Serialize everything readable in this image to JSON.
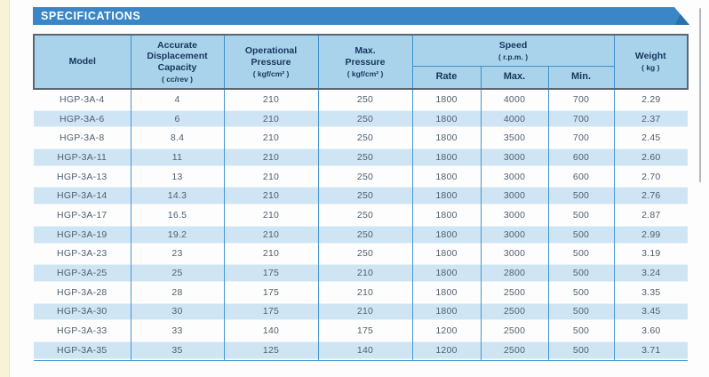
{
  "banner": {
    "title": "SPECIFICATIONS"
  },
  "table": {
    "headers": {
      "model": "Model",
      "capacity": "Accurate\nDisplacement\nCapacity",
      "capacity_unit": "( cc/rev )",
      "op_pressure": "Operational\nPressure",
      "op_pressure_unit": "( kgf/cm² )",
      "max_pressure": "Max.\nPressure",
      "max_pressure_unit": "( kgf/cm² )",
      "speed": "Speed",
      "speed_unit": "( r.p.m. )",
      "rate": "Rate",
      "max": "Max.",
      "min": "Min.",
      "weight": "Weight",
      "weight_unit": "( kg )"
    },
    "rows": [
      [
        "HGP-3A-4",
        "4",
        "210",
        "250",
        "1800",
        "4000",
        "700",
        "2.29"
      ],
      [
        "HGP-3A-6",
        "6",
        "210",
        "250",
        "1800",
        "4000",
        "700",
        "2.37"
      ],
      [
        "HGP-3A-8",
        "8.4",
        "210",
        "250",
        "1800",
        "3500",
        "700",
        "2.45"
      ],
      [
        "HGP-3A-11",
        "11",
        "210",
        "250",
        "1800",
        "3000",
        "600",
        "2.60"
      ],
      [
        "HGP-3A-13",
        "13",
        "210",
        "250",
        "1800",
        "3000",
        "600",
        "2.70"
      ],
      [
        "HGP-3A-14",
        "14.3",
        "210",
        "250",
        "1800",
        "3000",
        "500",
        "2.76"
      ],
      [
        "HGP-3A-17",
        "16.5",
        "210",
        "250",
        "1800",
        "3000",
        "500",
        "2.87"
      ],
      [
        "HGP-3A-19",
        "19.2",
        "210",
        "250",
        "1800",
        "3000",
        "500",
        "2.99"
      ],
      [
        "HGP-3A-23",
        "23",
        "210",
        "250",
        "1800",
        "3000",
        "500",
        "3.19"
      ],
      [
        "HGP-3A-25",
        "25",
        "175",
        "210",
        "1800",
        "2800",
        "500",
        "3.24"
      ],
      [
        "HGP-3A-28",
        "28",
        "175",
        "210",
        "1800",
        "2500",
        "500",
        "3.35"
      ],
      [
        "HGP-3A-30",
        "30",
        "175",
        "210",
        "1800",
        "2500",
        "500",
        "3.45"
      ],
      [
        "HGP-3A-33",
        "33",
        "140",
        "175",
        "1200",
        "2500",
        "500",
        "3.60"
      ],
      [
        "HGP-3A-35",
        "35",
        "125",
        "140",
        "1200",
        "2500",
        "500",
        "3.71"
      ]
    ]
  },
  "colors": {
    "banner-blue": "#3a86c6",
    "banner-fold": "#2d6fa9",
    "header-bg": "#a9d3eb",
    "header-text": "#17365d",
    "stripe-blue": "#cfe5f4",
    "line-blue": "#4797d2",
    "border-dark": "#5c6670",
    "body-text": "#4f6070",
    "strip-cream": "#f6f3d8",
    "page-bg": "#fdfdfd"
  }
}
